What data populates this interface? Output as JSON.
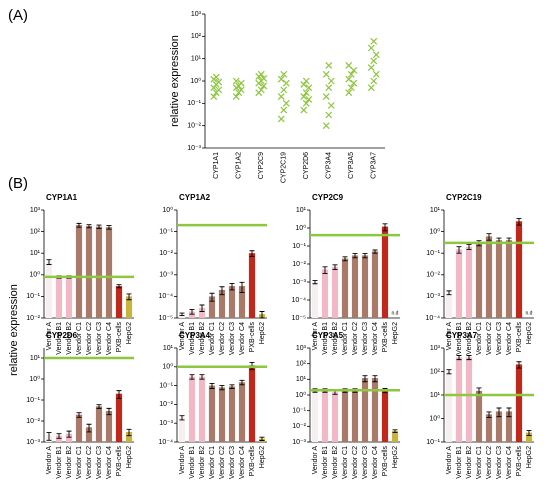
{
  "panel_labels": [
    "(A)",
    "(B)"
  ],
  "shared_ylabel": "relative expression",
  "chart_data": [
    {
      "type": "strip",
      "ylabel": "relative expression",
      "log_scale": true,
      "color": "#8dc63f",
      "categories": [
        "CYP1A1",
        "CYP1A2",
        "CYP2C9",
        "CYP2C19",
        "CYP2D6",
        "CYP3A4",
        "CYP3A5",
        "CYP3A7"
      ],
      "points": [
        [
          0.2,
          0.3,
          0.4,
          0.5,
          0.7,
          0.9,
          1.2,
          1.5
        ],
        [
          0.2,
          0.3,
          0.4,
          0.5,
          0.6,
          0.8,
          1
        ],
        [
          0.3,
          0.4,
          0.6,
          0.8,
          1,
          1.3,
          1.6,
          2
        ],
        [
          0.02,
          0.05,
          0.1,
          0.2,
          0.4,
          0.8,
          1.2,
          2
        ],
        [
          0.05,
          0.1,
          0.15,
          0.2,
          0.3,
          0.5,
          0.7,
          1
        ],
        [
          0.01,
          0.03,
          0.08,
          0.2,
          0.5,
          1,
          2,
          5
        ],
        [
          0.3,
          0.5,
          0.8,
          1.2,
          2,
          3,
          5
        ],
        [
          0.5,
          1,
          2,
          4,
          8,
          15,
          30,
          60
        ]
      ],
      "ylim": [
        0.001,
        1000
      ],
      "yticks": [
        {
          "value": 0.001,
          "label": "10⁻³"
        },
        {
          "value": 0.01,
          "label": "10⁻²"
        },
        {
          "value": 0.1,
          "label": "10⁻¹"
        },
        {
          "value": 1,
          "label": "10⁰"
        },
        {
          "value": 10,
          "label": "10¹"
        },
        {
          "value": 100,
          "label": "10²"
        },
        {
          "value": 1000,
          "label": "10³"
        }
      ]
    },
    {
      "type": "bar",
      "title": "CYP1A1",
      "log_scale": true,
      "categories": [
        "Vendor A",
        "Vendor B1",
        "Vendor B2",
        "Vendor C1",
        "Vendor C2",
        "Vendor C3",
        "Vendor C4",
        "PXB-cells",
        "HepG2"
      ],
      "colors": [
        "#f7eef0",
        "#f2b8c6",
        "#f2b8c6",
        "#a97a6a",
        "#a97a6a",
        "#a97a6a",
        "#a97a6a",
        "#c0281c",
        "#c8b43c"
      ],
      "values": [
        4,
        0.8,
        0.8,
        200,
        180,
        170,
        160,
        0.3,
        0.1
      ],
      "errors": [
        1,
        0.1,
        0.1,
        40,
        30,
        30,
        30,
        0.05,
        0.03
      ],
      "reference_line": {
        "value": 0.8,
        "color": "#8dc63f"
      },
      "ylim": [
        0.01,
        1000
      ],
      "yticks": [
        {
          "value": 0.01,
          "label": "10⁻²"
        },
        {
          "value": 0.1,
          "label": "10⁻¹"
        },
        {
          "value": 1,
          "label": "10⁰"
        },
        {
          "value": 10,
          "label": "10¹"
        },
        {
          "value": 100,
          "label": "10²"
        },
        {
          "value": 1000,
          "label": "10³"
        }
      ]
    },
    {
      "type": "bar",
      "title": "CYP1A2",
      "log_scale": true,
      "categories": [
        "Vendor A",
        "Vendor B1",
        "Vendor B2",
        "Vendor C1",
        "Vendor C2",
        "Vendor C3",
        "Vendor C4",
        "PXB-cells",
        "HepG2"
      ],
      "colors": [
        "#f7eef0",
        "#f2b8c6",
        "#f2b8c6",
        "#a97a6a",
        "#a97a6a",
        "#a97a6a",
        "#a97a6a",
        "#c0281c",
        "#c8b43c"
      ],
      "values": [
        1.5e-05,
        2e-05,
        3e-05,
        0.0001,
        0.0002,
        0.0003,
        0.0003,
        0.01,
        1.5e-05
      ],
      "errors": [
        2e-06,
        5e-06,
        1e-05,
        4e-05,
        8e-05,
        0.0001,
        0.00015,
        0.003,
        5e-06
      ],
      "reference_line": {
        "value": 0.2,
        "color": "#8dc63f"
      },
      "ylim": [
        1e-05,
        1
      ],
      "yticks": [
        {
          "value": 1e-05,
          "label": "10⁻⁵"
        },
        {
          "value": 0.0001,
          "label": "10⁻⁴"
        },
        {
          "value": 0.001,
          "label": "10⁻³"
        },
        {
          "value": 0.01,
          "label": "10⁻²"
        },
        {
          "value": 0.1,
          "label": "10⁻¹"
        },
        {
          "value": 1,
          "label": "10⁰"
        }
      ]
    },
    {
      "type": "bar",
      "title": "CYP2C9",
      "log_scale": true,
      "categories": [
        "Vendor A",
        "Vendor B1",
        "Vendor B2",
        "Vendor C1",
        "Vendor C2",
        "Vendor C3",
        "Vendor C4",
        "PXB-cells",
        "HepG2"
      ],
      "colors": [
        "#f7eef0",
        "#f2b8c6",
        "#f2b8c6",
        "#a97a6a",
        "#a97a6a",
        "#a97a6a",
        "#a97a6a",
        "#c0281c",
        "#c8b43c"
      ],
      "values": [
        0.001,
        0.005,
        0.007,
        0.02,
        0.03,
        0.03,
        0.05,
        1.2,
        null
      ],
      "value_labels": [
        null,
        null,
        null,
        null,
        null,
        null,
        null,
        null,
        "n.d"
      ],
      "errors": [
        0.0002,
        0.002,
        0.002,
        0.005,
        0.008,
        0.008,
        0.01,
        0.5,
        null
      ],
      "reference_line": {
        "value": 0.4,
        "color": "#8dc63f"
      },
      "ylim": [
        1e-05,
        10
      ],
      "yticks": [
        {
          "value": 1e-05,
          "label": "10⁻⁵"
        },
        {
          "value": 0.0001,
          "label": "10⁻⁴"
        },
        {
          "value": 0.001,
          "label": "10⁻³"
        },
        {
          "value": 0.01,
          "label": "10⁻²"
        },
        {
          "value": 0.1,
          "label": "10⁻¹"
        },
        {
          "value": 1,
          "label": "10⁰"
        },
        {
          "value": 10,
          "label": "10¹"
        }
      ]
    },
    {
      "type": "bar",
      "title": "CYP2C19",
      "log_scale": true,
      "categories": [
        "Vendor A",
        "Vendor B1",
        "Vendor B2",
        "Vendor C1",
        "Vendor C2",
        "Vendor C3",
        "Vendor C4",
        "PXB-cells",
        "HepG2"
      ],
      "colors": [
        "#f7eef0",
        "#f2b8c6",
        "#f2b8c6",
        "#a97a6a",
        "#a97a6a",
        "#a97a6a",
        "#a97a6a",
        "#c0281c",
        "#c8b43c"
      ],
      "values": [
        0.0015,
        0.15,
        0.2,
        0.3,
        0.6,
        0.4,
        0.4,
        3,
        null
      ],
      "value_labels": [
        null,
        null,
        null,
        null,
        null,
        null,
        null,
        null,
        "n.d"
      ],
      "errors": [
        0.0003,
        0.05,
        0.05,
        0.08,
        0.2,
        0.1,
        0.1,
        1,
        null
      ],
      "reference_line": {
        "value": 0.3,
        "color": "#8dc63f"
      },
      "ylim": [
        0.0001,
        10
      ],
      "yticks": [
        {
          "value": 0.0001,
          "label": "10⁻⁴"
        },
        {
          "value": 0.001,
          "label": "10⁻³"
        },
        {
          "value": 0.01,
          "label": "10⁻²"
        },
        {
          "value": 0.1,
          "label": "10⁻¹"
        },
        {
          "value": 1,
          "label": "10⁰"
        },
        {
          "value": 10,
          "label": "10¹"
        }
      ]
    },
    {
      "type": "bar",
      "title": "CYP2D6",
      "log_scale": true,
      "categories": [
        "Vendor A",
        "Vendor B1",
        "Vendor B2",
        "Vendor C1",
        "Vendor C2",
        "Vendor C3",
        "Vendor C4",
        "PXB-cells",
        "HepG2"
      ],
      "colors": [
        "#f7eef0",
        "#f2b8c6",
        "#f2b8c6",
        "#a97a6a",
        "#a97a6a",
        "#a97a6a",
        "#a97a6a",
        "#c0281c",
        "#c8b43c"
      ],
      "values": [
        0.002,
        0.002,
        0.0025,
        0.02,
        0.005,
        0.05,
        0.03,
        0.2,
        0.003
      ],
      "errors": [
        0.0008,
        0.0005,
        0.0008,
        0.005,
        0.002,
        0.01,
        0.01,
        0.08,
        0.001
      ],
      "reference_line": {
        "value": 10,
        "color": "#8dc63f"
      },
      "ylim": [
        0.001,
        30
      ],
      "yticks": [
        {
          "value": 0.001,
          "label": "10⁻³"
        },
        {
          "value": 0.01,
          "label": "10⁻²"
        },
        {
          "value": 0.1,
          "label": "10⁻¹"
        },
        {
          "value": 1,
          "label": "10⁰"
        },
        {
          "value": 10,
          "label": "10¹"
        }
      ]
    },
    {
      "type": "bar",
      "title": "CYP3A4",
      "log_scale": true,
      "categories": [
        "Vendor A",
        "Vendor B1",
        "Vendor B2",
        "Vendor C1",
        "Vendor C2",
        "Vendor C3",
        "Vendor C4",
        "PXB-cells",
        "HepG2"
      ],
      "colors": [
        "#f7eef0",
        "#f2b8c6",
        "#f2b8c6",
        "#a97a6a",
        "#a97a6a",
        "#a97a6a",
        "#a97a6a",
        "#c0281c",
        "#c8b43c"
      ],
      "values": [
        0.002,
        0.3,
        0.3,
        0.1,
        0.08,
        0.09,
        0.15,
        1.2,
        0.00015
      ],
      "errors": [
        0.0005,
        0.08,
        0.08,
        0.03,
        0.02,
        0.02,
        0.04,
        0.5,
        3e-05
      ],
      "reference_line": {
        "value": 1,
        "color": "#8dc63f"
      },
      "ylim": [
        0.0001,
        10
      ],
      "yticks": [
        {
          "value": 0.0001,
          "label": "10⁻⁴"
        },
        {
          "value": 0.001,
          "label": "10⁻³"
        },
        {
          "value": 0.01,
          "label": "10⁻²"
        },
        {
          "value": 0.1,
          "label": "10⁻¹"
        },
        {
          "value": 1,
          "label": "10⁰"
        },
        {
          "value": 10,
          "label": "10¹"
        }
      ]
    },
    {
      "type": "bar",
      "title": "CYP3A5",
      "log_scale": true,
      "categories": [
        "Vendor A",
        "Vendor B1",
        "Vendor B2",
        "Vendor C1",
        "Vendor C2",
        "Vendor C3",
        "Vendor C4",
        "PXB-cells",
        "HepG2"
      ],
      "colors": [
        "#f7eef0",
        "#f2b8c6",
        "#f2b8c6",
        "#a97a6a",
        "#a97a6a",
        "#a97a6a",
        "#a97a6a",
        "#c0281c",
        "#c8b43c"
      ],
      "values": [
        2,
        2,
        1.5,
        2,
        2,
        12,
        12,
        2,
        0.005
      ],
      "errors": [
        0.5,
        0.5,
        0.4,
        0.5,
        0.5,
        5,
        5,
        0.6,
        0.001
      ],
      "reference_line": {
        "value": 2,
        "color": "#8dc63f"
      },
      "ylim": [
        0.001,
        1000
      ],
      "yticks": [
        {
          "value": 0.001,
          "label": "10⁻³"
        },
        {
          "value": 0.01,
          "label": "10⁻²"
        },
        {
          "value": 0.1,
          "label": "10⁻¹"
        },
        {
          "value": 1,
          "label": "10⁰"
        },
        {
          "value": 10,
          "label": "10¹"
        },
        {
          "value": 100,
          "label": "10²"
        },
        {
          "value": 1000,
          "label": "10³"
        }
      ]
    },
    {
      "type": "bar",
      "title": "CYP3A7",
      "log_scale": true,
      "categories": [
        "Vendor A",
        "Vendor B1",
        "Vendor B2",
        "Vendor C1",
        "Vendor C2",
        "Vendor C3",
        "Vendor C4",
        "PXB-cells",
        "HepG2"
      ],
      "colors": [
        "#f7eef0",
        "#f2b8c6",
        "#f2b8c6",
        "#a97a6a",
        "#a97a6a",
        "#a97a6a",
        "#a97a6a",
        "#c0281c",
        "#c8b43c"
      ],
      "values": [
        100,
        400,
        400,
        15,
        1.5,
        2,
        2,
        200,
        0.25
      ],
      "errors": [
        20,
        80,
        80,
        5,
        0.4,
        0.8,
        0.8,
        60,
        0.06
      ],
      "reference_line": {
        "value": 10,
        "color": "#8dc63f"
      },
      "ylim": [
        0.1,
        1000
      ],
      "yticks": [
        {
          "value": 0.1,
          "label": "10⁻¹"
        },
        {
          "value": 1,
          "label": "10⁰"
        },
        {
          "value": 10,
          "label": "10¹"
        },
        {
          "value": 100,
          "label": "10²"
        },
        {
          "value": 1000,
          "label": "10³"
        }
      ]
    }
  ]
}
